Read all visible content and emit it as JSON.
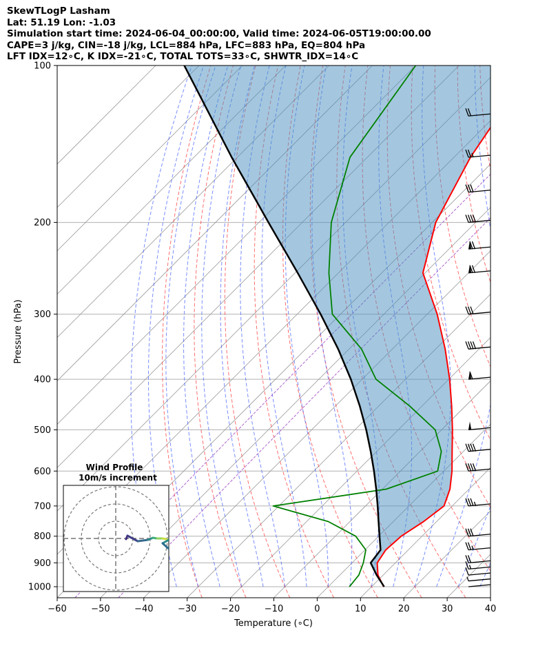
{
  "header": {
    "line1": "SkewTLogP Lasham",
    "line2": "Lat: 51.19   Lon: -1.03",
    "line3": "Simulation start time: 2024-06-04_00:00:00, Valid time: 2024-06-05T19:00:00.00",
    "line4": "CAPE=3 j/kg, CIN=-18 j/kg, LCL=884 hPa, LFC=883 hPa, EQ=804 hPa",
    "line5": "LFT IDX=12∘C, K IDX=-21∘C, TOTAL TOTS=33∘C, SHWTR_IDX=14∘C"
  },
  "chart_data": {
    "type": "line",
    "title": "SkewTLogP Lasham",
    "xlabel": "Temperature (∘C)",
    "ylabel": "Pressure (hPa)",
    "xlim": [
      -60,
      40
    ],
    "ylim": [
      1050,
      100
    ],
    "x_ticks": [
      "−60",
      "−50",
      "−40",
      "−30",
      "−20",
      "−10",
      "0",
      "10",
      "20",
      "30",
      "40"
    ],
    "x_tick_values": [
      -60,
      -50,
      -40,
      -30,
      -20,
      -10,
      0,
      10,
      20,
      30,
      40
    ],
    "y_ticks": [
      1000,
      900,
      800,
      700,
      600,
      500,
      400,
      300,
      200,
      100
    ],
    "pressure": [
      1000,
      950,
      900,
      850,
      800,
      750,
      700,
      650,
      600,
      550,
      500,
      450,
      400,
      350,
      300,
      250,
      200,
      150,
      100
    ],
    "series": [
      {
        "name": "Temperature",
        "color": "#ff0000",
        "values": [
          12.8,
          8.8,
          5.8,
          4.8,
          5.2,
          7.0,
          8.1,
          5.6,
          1.9,
          -2.6,
          -7.5,
          -13.2,
          -19.8,
          -27.8,
          -37.7,
          -50.5,
          -59.2,
          -66.2,
          -73.0
        ]
      },
      {
        "name": "Dewpoint",
        "color": "#008000",
        "values": [
          4.9,
          4.4,
          2.6,
          0.2,
          -5.3,
          -15.0,
          -31.3,
          -9.1,
          -1.4,
          -5.1,
          -11.5,
          -22.9,
          -36.8,
          -47.1,
          -61.9,
          -72.2,
          -83.3,
          -94.0,
          -100.0
        ]
      },
      {
        "name": "Parcel",
        "color": "#000000",
        "values": [
          12.9,
          8.5,
          4.3,
          3.6,
          0.2,
          -3.4,
          -7.2,
          -11.4,
          -16.1,
          -21.4,
          -27.4,
          -34.4,
          -42.6,
          -52.5,
          -64.6,
          -79.4,
          -97.8,
          -121.3,
          -153.4
        ]
      }
    ],
    "wind_barbs_speed_kt": [
      3,
      8,
      12,
      15,
      20,
      25,
      30,
      35,
      40,
      40,
      50,
      60,
      40,
      30,
      70,
      70,
      40,
      30,
      25,
      20
    ],
    "wind_barbs_pressure": [
      1000,
      975,
      950,
      925,
      900,
      850,
      800,
      700,
      600,
      550,
      500,
      400,
      350,
      300,
      250,
      225,
      200,
      175,
      150,
      125
    ],
    "wind_profile": {
      "title": "Wind Profile",
      "subtitle": "10m/s increment",
      "rings": 3
    }
  }
}
